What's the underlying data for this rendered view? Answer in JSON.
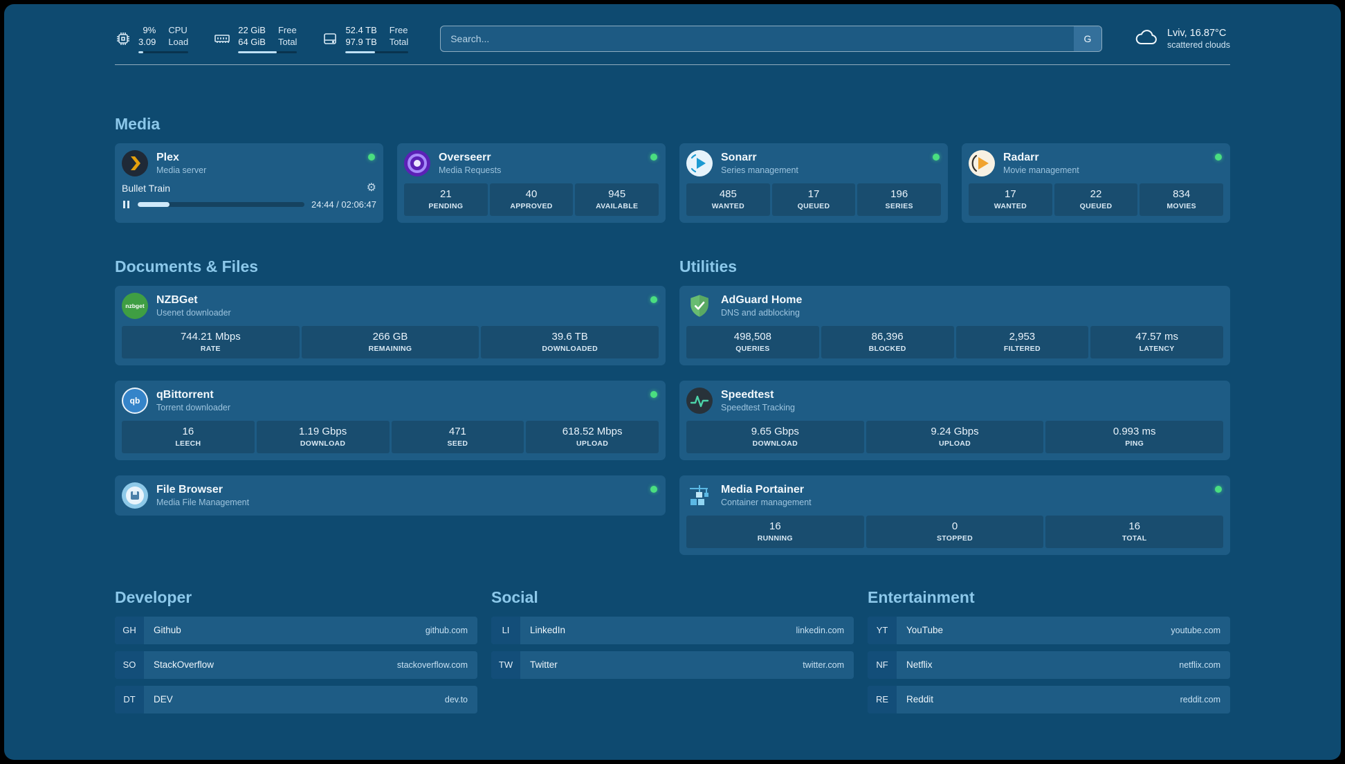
{
  "topbar": {
    "cpu": {
      "value_top": "9%",
      "value_bottom": "3.09",
      "label_top": "CPU",
      "label_bottom": "Load",
      "progress_pct": 9
    },
    "memory": {
      "value_top": "22 GiB",
      "value_bottom": "64 GiB",
      "label_top": "Free",
      "label_bottom": "Total",
      "progress_pct": 66
    },
    "disk": {
      "value_top": "52.4 TB",
      "value_bottom": "97.9 TB",
      "label_top": "Free",
      "label_bottom": "Total",
      "progress_pct": 47
    },
    "search": {
      "placeholder": "Search...",
      "button_label": "G"
    },
    "weather": {
      "location": "Lviv, 16.87°C",
      "condition": "scattered clouds"
    }
  },
  "section_titles": {
    "media": "Media",
    "documents": "Documents & Files",
    "utilities": "Utilities",
    "developer": "Developer",
    "social": "Social",
    "entertainment": "Entertainment"
  },
  "services": {
    "plex": {
      "name": "Plex",
      "subtitle": "Media server",
      "now_playing": "Bullet Train",
      "time": "24:44 / 02:06:47",
      "progress_pct": 19
    },
    "overseerr": {
      "name": "Overseerr",
      "subtitle": "Media Requests",
      "stats": [
        {
          "value": "21",
          "label": "PENDING"
        },
        {
          "value": "40",
          "label": "APPROVED"
        },
        {
          "value": "945",
          "label": "AVAILABLE"
        }
      ]
    },
    "sonarr": {
      "name": "Sonarr",
      "subtitle": "Series management",
      "stats": [
        {
          "value": "485",
          "label": "WANTED"
        },
        {
          "value": "17",
          "label": "QUEUED"
        },
        {
          "value": "196",
          "label": "SERIES"
        }
      ]
    },
    "radarr": {
      "name": "Radarr",
      "subtitle": "Movie management",
      "stats": [
        {
          "value": "17",
          "label": "WANTED"
        },
        {
          "value": "22",
          "label": "QUEUED"
        },
        {
          "value": "834",
          "label": "MOVIES"
        }
      ]
    },
    "nzbget": {
      "name": "NZBGet",
      "subtitle": "Usenet downloader",
      "icon_text": "nzbget",
      "stats": [
        {
          "value": "744.21 Mbps",
          "label": "RATE"
        },
        {
          "value": "266 GB",
          "label": "REMAINING"
        },
        {
          "value": "39.6 TB",
          "label": "DOWNLOADED"
        }
      ]
    },
    "qbittorrent": {
      "name": "qBittorrent",
      "subtitle": "Torrent downloader",
      "icon_text": "qb",
      "stats": [
        {
          "value": "16",
          "label": "LEECH"
        },
        {
          "value": "1.19 Gbps",
          "label": "DOWNLOAD"
        },
        {
          "value": "471",
          "label": "SEED"
        },
        {
          "value": "618.52 Mbps",
          "label": "UPLOAD"
        }
      ]
    },
    "filebrowser": {
      "name": "File Browser",
      "subtitle": "Media File Management"
    },
    "adguard": {
      "name": "AdGuard Home",
      "subtitle": "DNS and adblocking",
      "stats": [
        {
          "value": "498,508",
          "label": "QUERIES"
        },
        {
          "value": "86,396",
          "label": "BLOCKED"
        },
        {
          "value": "2,953",
          "label": "FILTERED"
        },
        {
          "value": "47.57 ms",
          "label": "LATENCY"
        }
      ]
    },
    "speedtest": {
      "name": "Speedtest",
      "subtitle": "Speedtest Tracking",
      "stats": [
        {
          "value": "9.65 Gbps",
          "label": "DOWNLOAD"
        },
        {
          "value": "9.24 Gbps",
          "label": "UPLOAD"
        },
        {
          "value": "0.993 ms",
          "label": "PING"
        }
      ]
    },
    "portainer": {
      "name": "Media Portainer",
      "subtitle": "Container management",
      "stats": [
        {
          "value": "16",
          "label": "RUNNING"
        },
        {
          "value": "0",
          "label": "STOPPED"
        },
        {
          "value": "16",
          "label": "TOTAL"
        }
      ]
    }
  },
  "bookmarks": {
    "developer": [
      {
        "abbr": "GH",
        "name": "Github",
        "host": "github.com"
      },
      {
        "abbr": "SO",
        "name": "StackOverflow",
        "host": "stackoverflow.com"
      },
      {
        "abbr": "DT",
        "name": "DEV",
        "host": "dev.to"
      }
    ],
    "social": [
      {
        "abbr": "LI",
        "name": "LinkedIn",
        "host": "linkedin.com"
      },
      {
        "abbr": "TW",
        "name": "Twitter",
        "host": "twitter.com"
      }
    ],
    "entertainment": [
      {
        "abbr": "YT",
        "name": "YouTube",
        "host": "youtube.com"
      },
      {
        "abbr": "NF",
        "name": "Netflix",
        "host": "netflix.com"
      },
      {
        "abbr": "RE",
        "name": "Reddit",
        "host": "reddit.com"
      }
    ]
  },
  "colors": {
    "status_online": "#4ade80",
    "heading_accent": "#8cc8ea",
    "background": "#0e4a70",
    "card": "#1e5c85"
  }
}
